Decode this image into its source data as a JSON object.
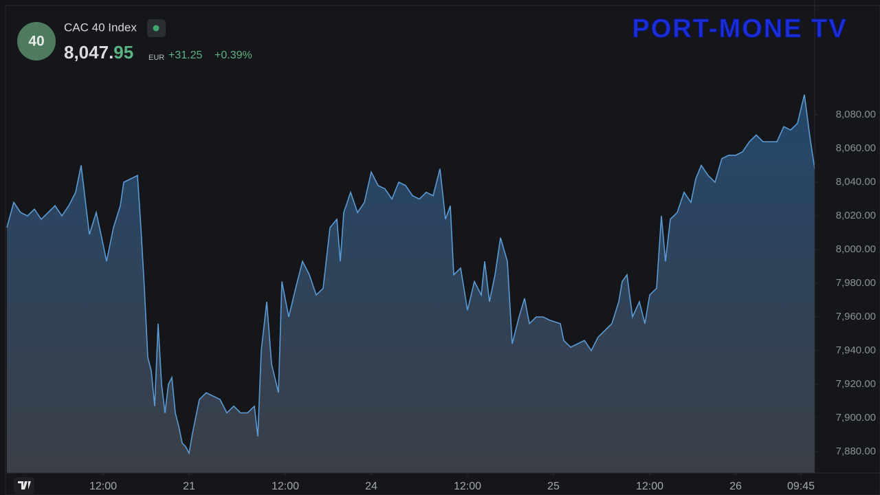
{
  "header": {
    "badge": "40",
    "symbol": "CAC 40 Index",
    "price_main": "8,047.",
    "price_fraction": "95",
    "currency": "EUR",
    "change": "+31.25",
    "change_percent": "+0.39%",
    "watermark": "PORT-MONE TV"
  },
  "chart_data": {
    "type": "area",
    "color": "#5b9bd5",
    "x": [
      0,
      2,
      4,
      6,
      8,
      10,
      12,
      14,
      16,
      18,
      20,
      21.6,
      23,
      24,
      26,
      28,
      29,
      31,
      33,
      34,
      36,
      38,
      39,
      40,
      41,
      42,
      43,
      44,
      45,
      46,
      47,
      48,
      49,
      50,
      51,
      52,
      53,
      54,
      56,
      58,
      60,
      62,
      64,
      66,
      68,
      70,
      72,
      73,
      74,
      75.6,
      77,
      79,
      80,
      82,
      84,
      86,
      88,
      90,
      92,
      94,
      96,
      97,
      98,
      100,
      102,
      104,
      106,
      108,
      110,
      112,
      114,
      116,
      118,
      120,
      122,
      124,
      126,
      127.6,
      129,
      130,
      132,
      134,
      136,
      138,
      139,
      140.4,
      142,
      143.6,
      145.6,
      147,
      149,
      150.6,
      152,
      154,
      156,
      158,
      161,
      162,
      164,
      166,
      168,
      170,
      172,
      174,
      176,
      178,
      179,
      180.4,
      182,
      184,
      185.6,
      187,
      189,
      190.4,
      191.6,
      193,
      195,
      197,
      199,
      200.4,
      202,
      204,
      206,
      208,
      210,
      212,
      214,
      216,
      218,
      220,
      222,
      224,
      226,
      228,
      230,
      232,
      233.6,
      235
    ],
    "values": [
      8013,
      8028,
      8022,
      8020,
      8024,
      8018,
      8022,
      8026,
      8020,
      8026,
      8034,
      8050,
      8026,
      8009,
      8022,
      8003,
      7993,
      8013,
      8026,
      8040,
      8042,
      8044,
      8013,
      7977,
      7936,
      7928,
      7907,
      7956,
      7920,
      7903,
      7920,
      7924,
      7903,
      7895,
      7885,
      7883,
      7879,
      7891,
      7911,
      7915,
      7913,
      7911,
      7903,
      7907,
      7903,
      7903,
      7907,
      7889,
      7940,
      7969,
      7932,
      7915,
      7981,
      7960,
      7977,
      7993,
      7985,
      7973,
      7977,
      8013,
      8018,
      7993,
      8022,
      8034,
      8022,
      8028,
      8046,
      8038,
      8036,
      8030,
      8040,
      8038,
      8032,
      8030,
      8034,
      8032,
      8048,
      8018,
      8026,
      7985,
      7989,
      7964,
      7981,
      7973,
      7993,
      7969,
      7985,
      8007,
      7993,
      7944,
      7960,
      7971,
      7956,
      7960,
      7960,
      7958,
      7956,
      7946,
      7942,
      7944,
      7946,
      7940,
      7948,
      7952,
      7956,
      7969,
      7981,
      7985,
      7960,
      7969,
      7956,
      7973,
      7977,
      8020,
      7993,
      8018,
      8022,
      8034,
      8028,
      8042,
      8050,
      8044,
      8040,
      8054,
      8056,
      8056,
      8058,
      8064,
      8068,
      8064,
      8064,
      8064,
      8073,
      8071,
      8075,
      8092,
      8067,
      8048
    ],
    "xlim": [
      0,
      235
    ],
    "xticks": [
      {
        "value": 28,
        "label": "12:00"
      },
      {
        "value": 53,
        "label": "21"
      },
      {
        "value": 81,
        "label": "12:00"
      },
      {
        "value": 106,
        "label": "24"
      },
      {
        "value": 134,
        "label": "12:00"
      },
      {
        "value": 159,
        "label": "25"
      },
      {
        "value": 187,
        "label": "12:00"
      },
      {
        "value": 212,
        "label": "26"
      },
      {
        "value": 231,
        "label": "09:45"
      }
    ],
    "ylim": [
      7867.3,
      8148.2
    ],
    "yticks": [
      {
        "value": 8080,
        "label": "8,080.00"
      },
      {
        "value": 8060,
        "label": "8,060.00"
      },
      {
        "value": 8040,
        "label": "8,040.00"
      },
      {
        "value": 8020,
        "label": "8,020.00"
      },
      {
        "value": 8000,
        "label": "8,000.00"
      },
      {
        "value": 7980,
        "label": "7,980.00"
      },
      {
        "value": 7960,
        "label": "7,960.00"
      },
      {
        "value": 7940,
        "label": "7,940.00"
      },
      {
        "value": 7920,
        "label": "7,920.00"
      },
      {
        "value": 7900,
        "label": "7,900.00"
      },
      {
        "value": 7880,
        "label": "7,880.00"
      }
    ]
  }
}
